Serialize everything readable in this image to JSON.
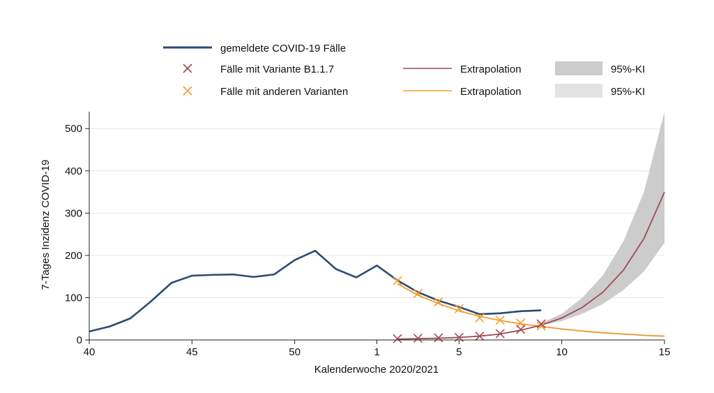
{
  "chart_data": {
    "type": "line",
    "xlabel": "Kalenderwoche 2020/2021",
    "ylabel": "7-Tages Inzidenz COVID-19",
    "ylim": [
      0,
      540
    ],
    "xlim": [
      40,
      68
    ],
    "yticks": [
      0,
      100,
      200,
      300,
      400,
      500
    ],
    "xticks": [
      {
        "x": 40,
        "label": "40"
      },
      {
        "x": 45,
        "label": "45"
      },
      {
        "x": 50,
        "label": "50"
      },
      {
        "x": 54,
        "label": "1"
      },
      {
        "x": 58,
        "label": "5"
      },
      {
        "x": 63,
        "label": "10"
      },
      {
        "x": 68,
        "label": "15"
      }
    ],
    "grid": "horizontal",
    "legend_position": "top",
    "legend": {
      "reported": "gemeldete COVID-19 Fälle",
      "b117_marker": "Fälle mit Variante B1.1.7",
      "other_marker": "Fälle mit anderen Varianten",
      "b117_extrap": "Extrapolation",
      "other_extrap": "Extrapolation",
      "ci_b117": "95%-KI",
      "ci_other": "95%-KI"
    },
    "colors": {
      "reported": "#2b4b74",
      "b117": "#a04a55",
      "other": "#f39c2c",
      "ci_dark": "#cccccc",
      "ci_light": "#e3e3e3",
      "grid": "#e6e6e6"
    },
    "series": [
      {
        "name": "gemeldete COVID-19 Fälle",
        "x": [
          40,
          41,
          42,
          43,
          44,
          45,
          46,
          47,
          48,
          49,
          50,
          51,
          52,
          53,
          54,
          55,
          56,
          57,
          58,
          59,
          60,
          61,
          62
        ],
        "values": [
          20,
          32,
          51,
          91,
          135,
          152,
          154,
          155,
          149,
          155,
          189,
          211,
          168,
          148,
          176,
          141,
          113,
          93,
          78,
          61,
          63,
          68,
          70
        ]
      },
      {
        "name": "Fälle mit Variante B1.1.7",
        "x": [
          55,
          56,
          57,
          58,
          59,
          60,
          61,
          62
        ],
        "values": [
          3,
          4,
          5,
          6,
          9,
          15,
          25,
          38
        ]
      },
      {
        "name": "Fälle mit anderen Varianten",
        "x": [
          55,
          56,
          57,
          58,
          59,
          60,
          61,
          62
        ],
        "values": [
          140,
          110,
          90,
          74,
          52,
          47,
          40,
          33
        ]
      },
      {
        "name": "Extrapolation B1.1.7",
        "x": [
          55,
          56,
          57,
          58,
          59,
          60,
          61,
          62,
          63,
          64,
          65,
          66,
          67,
          68
        ],
        "values": [
          2,
          3,
          4,
          6,
          9,
          14,
          23,
          35,
          52,
          77,
          113,
          165,
          240,
          350
        ]
      },
      {
        "name": "Extrapolation andere Varianten",
        "x": [
          55,
          56,
          57,
          58,
          59,
          60,
          61,
          62,
          63,
          64,
          65,
          66,
          67,
          68
        ],
        "values": [
          133,
          106,
          86,
          69,
          56,
          46,
          38,
          32,
          26,
          21,
          17,
          14,
          11,
          9
        ]
      }
    ],
    "ci_b117": {
      "x": [
        62,
        63,
        64,
        65,
        66,
        67,
        68
      ],
      "lower": [
        34,
        45,
        62,
        85,
        118,
        162,
        230
      ],
      "upper": [
        40,
        62,
        100,
        153,
        233,
        350,
        540
      ]
    },
    "ci_other": {
      "x": [
        62,
        63,
        64,
        65,
        66,
        67,
        68
      ],
      "lower": [
        31,
        24,
        19,
        15,
        12,
        9,
        7
      ],
      "upper": [
        34,
        28,
        23,
        19,
        16,
        13,
        11
      ]
    }
  }
}
